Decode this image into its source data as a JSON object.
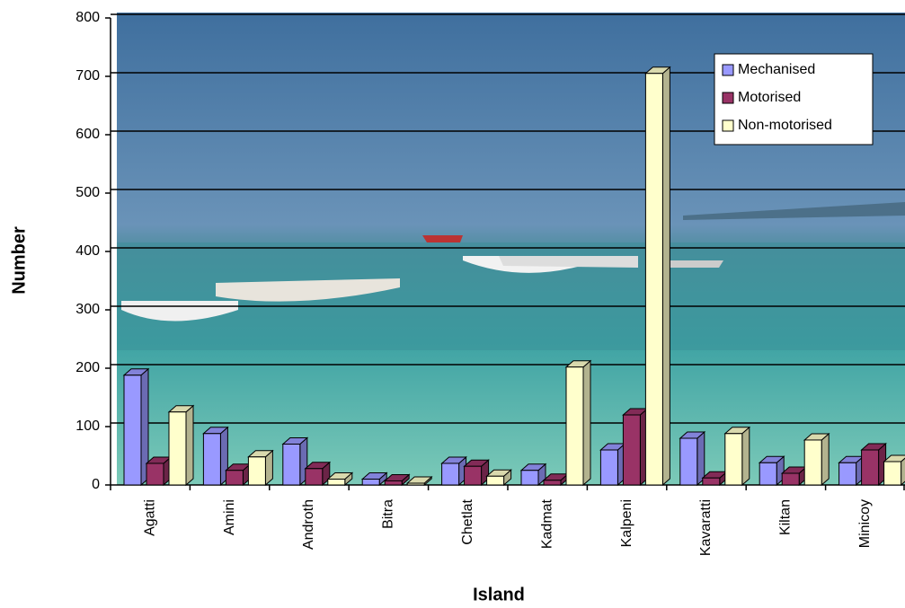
{
  "chart_data": {
    "type": "bar3d",
    "x_label": "Island",
    "y_label": "Number",
    "categories": [
      "Agatti",
      "Amini",
      "Androth",
      "Bitra",
      "Chetlat",
      "Kadmat",
      "Kalpeni",
      "Kavaratti",
      "Kiltan",
      "Minicoy"
    ],
    "series": [
      {
        "name": "Mechanised",
        "color": "#9999ff",
        "values": [
          188,
          88,
          70,
          10,
          37,
          25,
          60,
          80,
          38,
          38
        ]
      },
      {
        "name": "Motorised",
        "color": "#993366",
        "values": [
          37,
          25,
          28,
          7,
          32,
          8,
          120,
          12,
          20,
          60
        ]
      },
      {
        "name": "Non-motorised",
        "color": "#ffffcc",
        "values": [
          125,
          48,
          10,
          3,
          15,
          202,
          705,
          88,
          77,
          40
        ]
      }
    ],
    "ylim": [
      0,
      800
    ],
    "yticks": [
      0,
      100,
      200,
      300,
      400,
      500,
      600,
      700,
      800
    ],
    "grid": true,
    "legend": "upper right"
  }
}
